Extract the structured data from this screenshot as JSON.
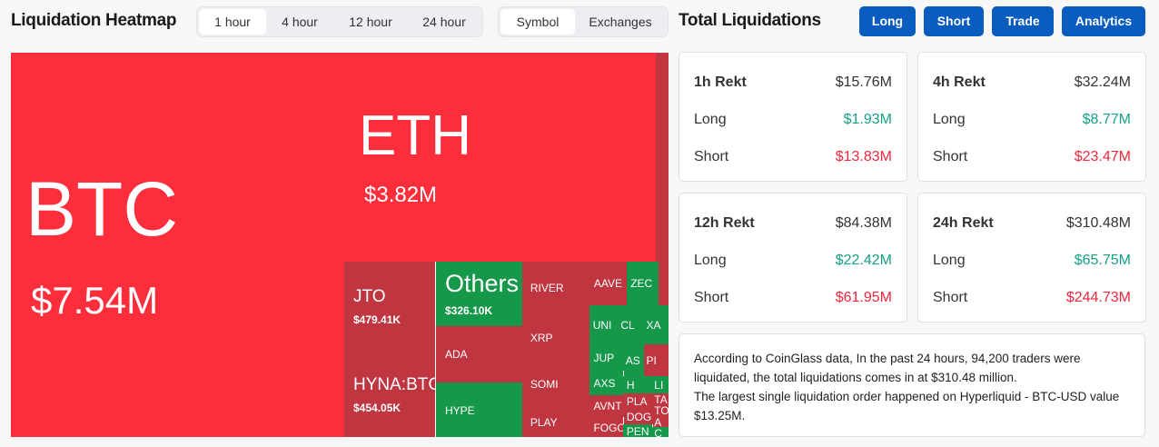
{
  "heatmap": {
    "title": "Liquidation Heatmap",
    "time_tabs": [
      "1 hour",
      "4 hour",
      "12 hour",
      "24 hour"
    ],
    "selected_time": "1 hour",
    "view_tabs": [
      "Symbol",
      "Exchanges"
    ],
    "selected_view": "Symbol",
    "colors": {
      "short_large": "#fd2e3b",
      "short": "#bf3540",
      "long": "#16984b"
    },
    "tiles": [
      {
        "label": "BTC",
        "value": "$7.54M",
        "color": "short_large"
      },
      {
        "label": "ETH",
        "value": "$3.82M",
        "color": "short_large"
      },
      {
        "label": "",
        "value": "",
        "color": "short"
      },
      {
        "label": "JTO",
        "value": "$479.41K",
        "color": "short"
      },
      {
        "label": "HYNA:BTC",
        "value": "$454.05K",
        "color": "short"
      },
      {
        "label": "Others",
        "value": "$326.10K",
        "color": "long"
      },
      {
        "label": "ADA",
        "value": "",
        "color": "short"
      },
      {
        "label": "HYPE",
        "value": "",
        "color": "long"
      },
      {
        "label": "RIVER",
        "value": "",
        "color": "short"
      },
      {
        "label": "XRP",
        "value": "",
        "color": "short"
      },
      {
        "label": "SOMI",
        "value": "",
        "color": "short"
      },
      {
        "label": "PLAY",
        "value": "",
        "color": "short"
      },
      {
        "label": "AAVE",
        "value": "",
        "color": "short"
      },
      {
        "label": "ZEC",
        "value": "",
        "color": "long"
      },
      {
        "label": "",
        "value": "",
        "color": "short"
      },
      {
        "label": "UNI",
        "value": "",
        "color": "long"
      },
      {
        "label": "CL",
        "value": "",
        "color": "long"
      },
      {
        "label": "XA",
        "value": "",
        "color": "long"
      },
      {
        "label": "JUP",
        "value": "",
        "color": "long"
      },
      {
        "label": "AS",
        "value": "",
        "color": "long"
      },
      {
        "label": "PI",
        "value": "",
        "color": "short"
      },
      {
        "label": "",
        "value": "",
        "color": "short"
      },
      {
        "label": "AXS",
        "value": "",
        "color": "long"
      },
      {
        "label": "H",
        "value": "",
        "color": "long"
      },
      {
        "label": "LI",
        "value": "",
        "color": "long"
      },
      {
        "label": "AVNT",
        "value": "",
        "color": "short"
      },
      {
        "label": "PLA",
        "value": "",
        "color": "short"
      },
      {
        "label": "TA",
        "value": "",
        "color": "short"
      },
      {
        "label": "DOG",
        "value": "",
        "color": "short"
      },
      {
        "label": "TO",
        "value": "",
        "color": "short"
      },
      {
        "label": "A",
        "value": "",
        "color": "short"
      },
      {
        "label": "FOGO",
        "value": "",
        "color": "short"
      },
      {
        "label": "PEN",
        "value": "",
        "color": "long"
      },
      {
        "label": "C",
        "value": "",
        "color": "long"
      }
    ]
  },
  "totals": {
    "title": "Total Liquidations",
    "buttons": [
      "Long",
      "Short",
      "Trade",
      "Analytics"
    ],
    "cards": [
      {
        "title": "1h Rekt",
        "total": "$15.76M",
        "long_label": "Long",
        "long": "$1.93M",
        "short_label": "Short",
        "short": "$13.83M"
      },
      {
        "title": "4h Rekt",
        "total": "$32.24M",
        "long_label": "Long",
        "long": "$8.77M",
        "short_label": "Short",
        "short": "$23.47M"
      },
      {
        "title": "12h Rekt",
        "total": "$84.38M",
        "long_label": "Long",
        "long": "$22.42M",
        "short_label": "Short",
        "short": "$61.95M"
      },
      {
        "title": "24h Rekt",
        "total": "$310.48M",
        "long_label": "Long",
        "long": "$65.75M",
        "short_label": "Short",
        "short": "$244.73M"
      }
    ],
    "summary": [
      "According to CoinGlass data, In the past 24 hours, 94,200 traders were liquidated, the total liquidations comes in at $310.48 million.",
      "The largest single liquidation order happened on Hyperliquid - BTC-USD value $13.25M."
    ]
  }
}
